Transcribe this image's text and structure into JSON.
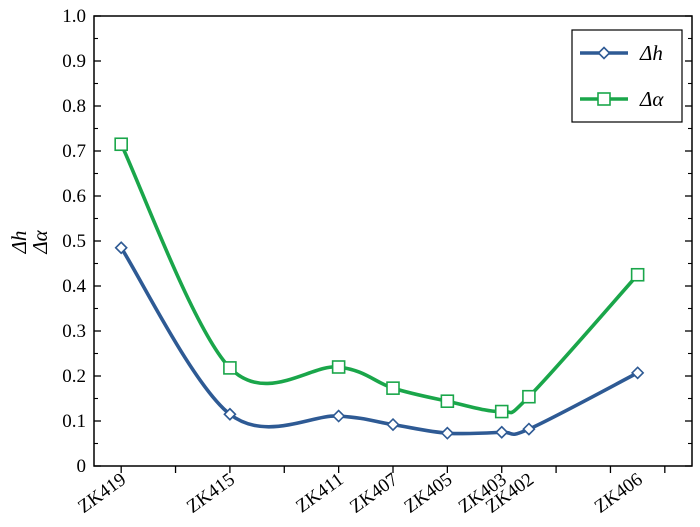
{
  "chart_data": {
    "type": "line",
    "title": "",
    "xlabel": "",
    "ylabel": [
      "Δh",
      "Δα"
    ],
    "categories": [
      "ZK419",
      "ZK415",
      "ZK411",
      "ZK407",
      "ZK405",
      "ZK403",
      "ZK402",
      "ZK406"
    ],
    "x": [
      0,
      2,
      4,
      5,
      6,
      7,
      7.5,
      9.5
    ],
    "xlim": [
      -0.5,
      10.5
    ],
    "ylim": [
      0,
      1.0
    ],
    "yticks": [
      0,
      0.1,
      0.2,
      0.3,
      0.4,
      0.5,
      0.6,
      0.7,
      0.8,
      0.9,
      1.0
    ],
    "ytick_labels": [
      "0",
      "0.1",
      "0.2",
      "0.3",
      "0.4",
      "0.5",
      "0.6",
      "0.7",
      "0.8",
      "0.9",
      "1.0"
    ],
    "grid": false,
    "legend_position": "top-right",
    "series": [
      {
        "name": "Δh",
        "color": "#2e5a94",
        "marker": "diamond",
        "smooth": true,
        "values": [
          0.485,
          0.115,
          0.111,
          0.092,
          0.073,
          0.075,
          0.082,
          0.207
        ]
      },
      {
        "name": "Δα",
        "color": "#1aa64a",
        "marker": "square",
        "smooth": true,
        "values": [
          0.715,
          0.218,
          0.22,
          0.173,
          0.144,
          0.121,
          0.154,
          0.425
        ]
      }
    ]
  }
}
